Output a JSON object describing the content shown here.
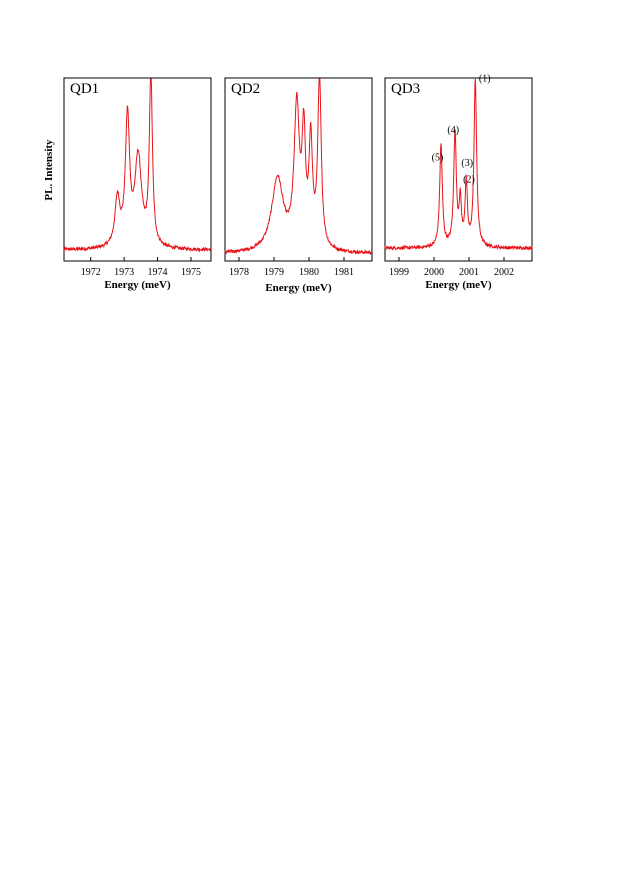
{
  "figure": {
    "ylabel": "PL. Intensity"
  },
  "chart_data": [
    {
      "type": "line",
      "title": "QD1",
      "xlabel": "Energy (meV)",
      "ylabel": "PL. Intensity",
      "xlim": [
        1971.2,
        1975.6
      ],
      "ylim": [
        0,
        1.0
      ],
      "xticks": [
        1972,
        1973,
        1974,
        1975
      ],
      "grid": false,
      "color": "#e8141a",
      "baseline": 0.06,
      "peaks": [
        {
          "x": 1972.8,
          "h": 0.26,
          "w": 0.09
        },
        {
          "x": 1973.1,
          "h": 0.7,
          "w": 0.075
        },
        {
          "x": 1973.42,
          "h": 0.49,
          "w": 0.12
        },
        {
          "x": 1973.8,
          "h": 0.94,
          "w": 0.055
        }
      ],
      "annotations": []
    },
    {
      "type": "line",
      "title": "QD2",
      "xlabel": "Energy (meV)",
      "ylabel": "",
      "xlim": [
        1977.6,
        1981.8
      ],
      "ylim": [
        0,
        1.0
      ],
      "xticks": [
        1978,
        1979,
        1980,
        1981
      ],
      "grid": false,
      "color": "#e8141a",
      "baseline": 0.04,
      "peaks": [
        {
          "x": 1979.1,
          "h": 0.4,
          "w": 0.2
        },
        {
          "x": 1979.65,
          "h": 0.76,
          "w": 0.09
        },
        {
          "x": 1979.85,
          "h": 0.58,
          "w": 0.06
        },
        {
          "x": 1980.05,
          "h": 0.56,
          "w": 0.06
        },
        {
          "x": 1980.3,
          "h": 0.93,
          "w": 0.06
        }
      ],
      "annotations": []
    },
    {
      "type": "line",
      "title": "QD3",
      "xlabel": "Energy (meV)",
      "ylabel": "",
      "xlim": [
        1998.6,
        2002.8
      ],
      "ylim": [
        0,
        1.0
      ],
      "xticks": [
        1999,
        2000,
        2001,
        2002
      ],
      "grid": false,
      "color": "#e8141a",
      "baseline": 0.07,
      "peaks": [
        {
          "x": 2000.2,
          "h": 0.56,
          "w": 0.045
        },
        {
          "x": 2000.6,
          "h": 0.62,
          "w": 0.045
        },
        {
          "x": 2000.75,
          "h": 0.24,
          "w": 0.04
        },
        {
          "x": 2000.92,
          "h": 0.34,
          "w": 0.04
        },
        {
          "x": 2001.18,
          "h": 0.92,
          "w": 0.045
        }
      ],
      "annotations": [
        {
          "text": "(1)",
          "x": 2001.45,
          "y": 0.98
        },
        {
          "text": "(4)",
          "x": 2000.55,
          "y": 0.7
        },
        {
          "text": "(5)",
          "x": 2000.1,
          "y": 0.55
        },
        {
          "text": "(3)",
          "x": 2000.95,
          "y": 0.52
        },
        {
          "text": "(2)",
          "x": 2001.0,
          "y": 0.43
        }
      ]
    }
  ]
}
